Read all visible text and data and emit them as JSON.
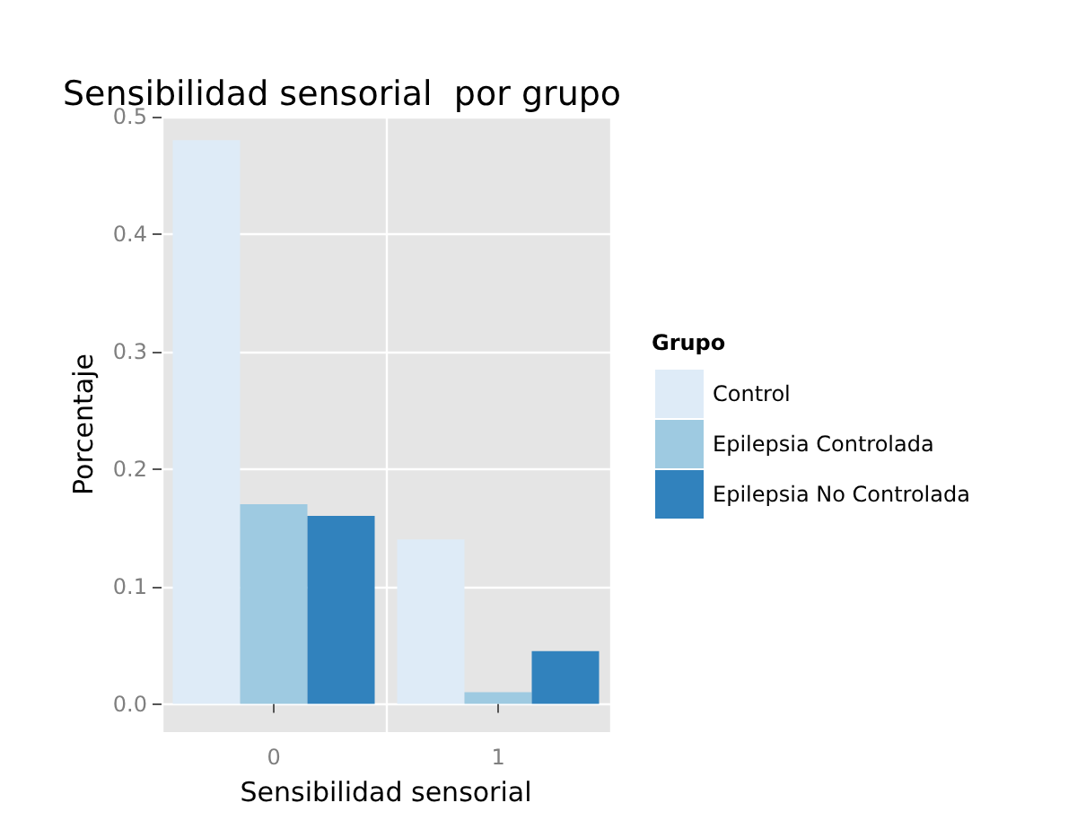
{
  "chart_data": {
    "type": "bar",
    "title": "Sensibilidad sensorial  por grupo",
    "xlabel": "Sensibilidad sensorial",
    "ylabel": "Porcentaje",
    "legend_title": "Grupo",
    "categories": [
      "0",
      "1"
    ],
    "series": [
      {
        "name": "Control",
        "color": "#deebf7",
        "values": [
          0.48,
          0.14
        ]
      },
      {
        "name": "Epilepsia Controlada",
        "color": "#9ecae1",
        "values": [
          0.17,
          0.01
        ]
      },
      {
        "name": "Epilepsia No Controlada",
        "color": "#3182bd",
        "values": [
          0.16,
          0.045
        ]
      }
    ],
    "ylim": [
      -0.024,
      0.5
    ],
    "yticks": [
      {
        "value": 0,
        "label": "0.0"
      },
      {
        "value": 0.1,
        "label": "0.1"
      },
      {
        "value": 0.2,
        "label": "0.2"
      },
      {
        "value": 0.3,
        "label": "0.3"
      },
      {
        "value": 0.4,
        "label": "0.4"
      },
      {
        "value": 0.5,
        "label": "0.5"
      }
    ],
    "grid": true,
    "legend": "right"
  }
}
